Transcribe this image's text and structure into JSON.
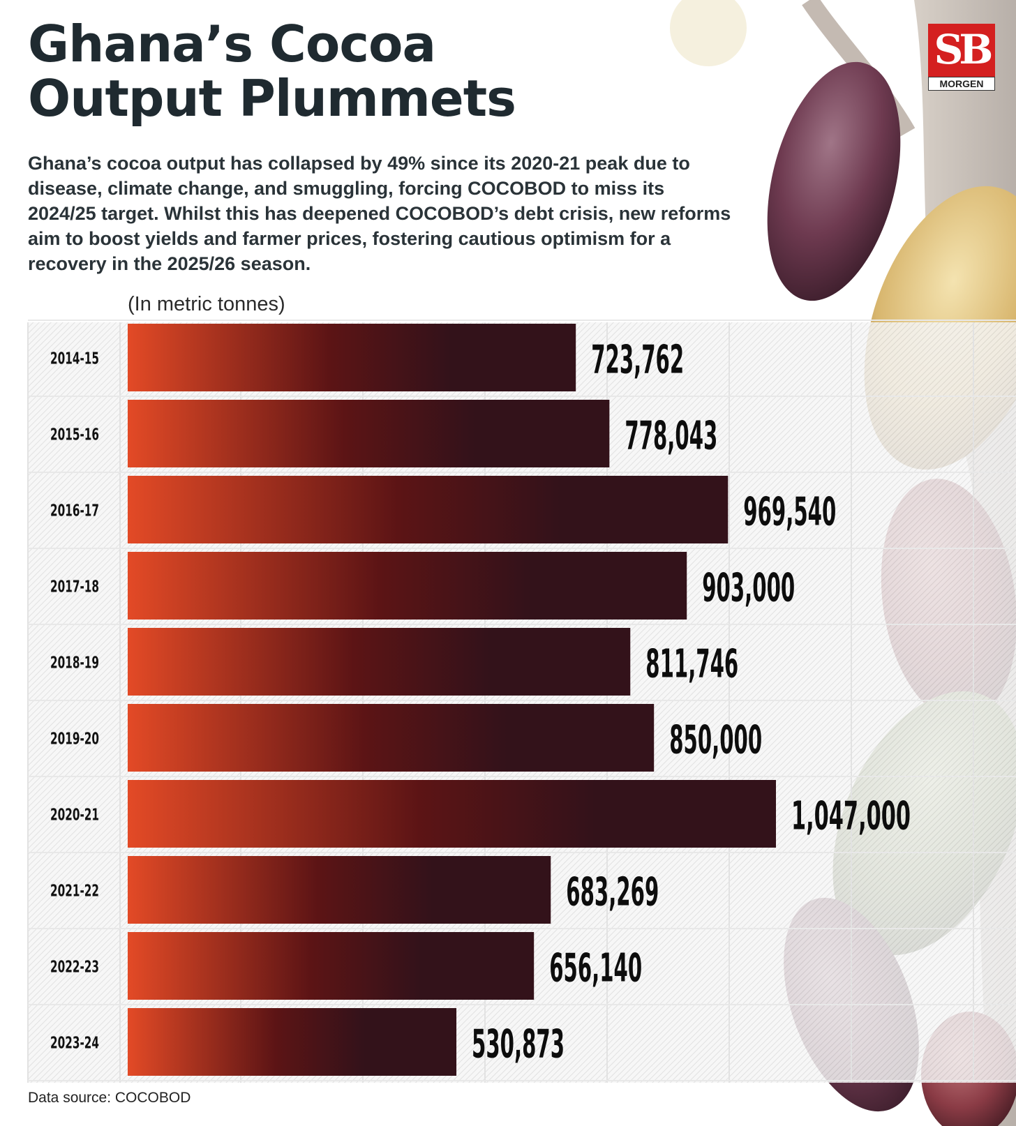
{
  "header": {
    "title_line1": "Ghana’s Cocoa",
    "title_line2": "Output Plummets",
    "subtitle": "Ghana’s cocoa output has collapsed by 49% since its 2020-21 peak due to disease, climate change, and smuggling, forcing COCOBOD to miss its 2024/25 target. Whilst this has deepened COCOBOD’s debt crisis, new reforms aim to boost yields and farmer prices, fostering cautious optimism for a recovery in the 2025/26 season."
  },
  "logo": {
    "mark": "SB",
    "text": "MORGEN"
  },
  "chart_data": {
    "type": "bar",
    "orientation": "horizontal",
    "unit_label": "(In metric tonnes)",
    "categories": [
      "2014-15",
      "2015-16",
      "2016-17",
      "2017-18",
      "2018-19",
      "2019-20",
      "2020-21",
      "2021-22",
      "2022-23",
      "2023-24"
    ],
    "values": [
      723762,
      778043,
      969540,
      903000,
      811746,
      850000,
      1047000,
      683269,
      656140,
      530873
    ],
    "value_labels": [
      "723,762",
      "778,043",
      "969,540",
      "903,000",
      "811,746",
      "850,000",
      "1,047,000",
      "683,269",
      "656,140",
      "530,873"
    ],
    "xlim": [
      0,
      1100000
    ],
    "grid": true,
    "colors": {
      "bar_start": "#e34a26",
      "bar_mid": "#5c1415",
      "bar_end": "#33121a",
      "label": "#0d0d0d"
    }
  },
  "footer": {
    "source": "Data source: COCOBOD"
  }
}
